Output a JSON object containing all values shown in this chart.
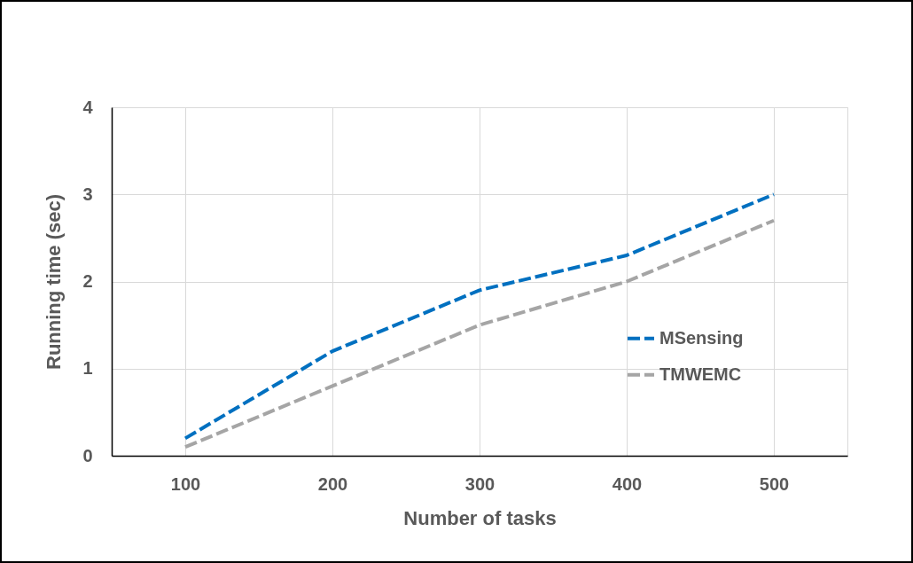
{
  "chart_data": {
    "type": "line",
    "xlabel": "Number of tasks",
    "ylabel": "Running time (sec)",
    "categories": [
      "100",
      "200",
      "300",
      "400",
      "500"
    ],
    "series": [
      {
        "name": "MSensing",
        "color": "#0070c0",
        "line_style": "dashed",
        "values": [
          0.2,
          1.2,
          1.9,
          2.3,
          3.0
        ]
      },
      {
        "name": "TMWEMC",
        "color": "#a5a5a5",
        "line_style": "dashed",
        "values": [
          0.1,
          0.8,
          1.5,
          2.0,
          2.7
        ]
      }
    ],
    "ylim": [
      0,
      4
    ],
    "yticks": [
      0,
      1,
      2,
      3,
      4
    ],
    "grid": true,
    "legend": "right"
  }
}
